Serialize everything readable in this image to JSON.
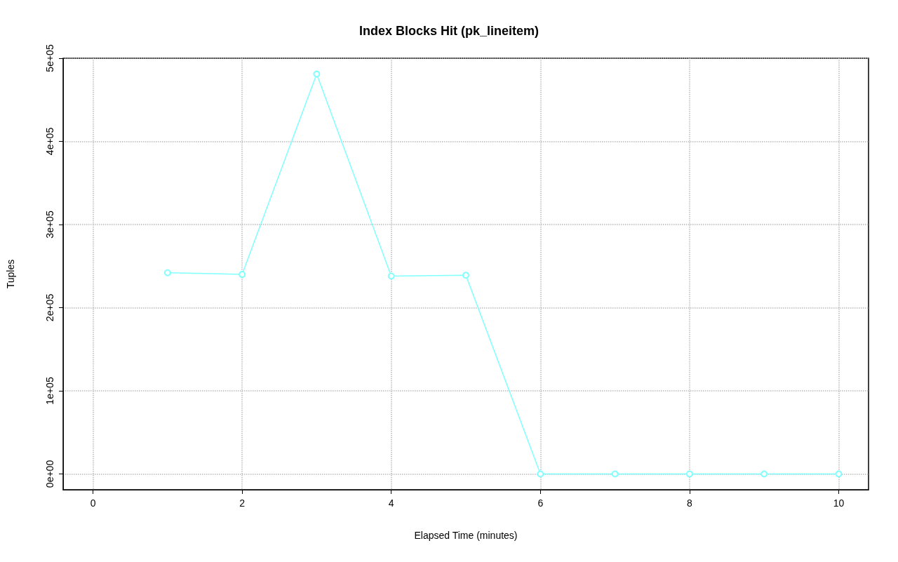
{
  "chart_data": {
    "type": "line",
    "title": "Index Blocks Hit (pk_lineitem)",
    "xlabel": "Elapsed Time (minutes)",
    "ylabel": "Tuples",
    "x": [
      1,
      2,
      3,
      4,
      5,
      6,
      7,
      8,
      9,
      10
    ],
    "series": [
      {
        "color": "#80ffff",
        "values": [
          242000,
          240000,
          481000,
          238000,
          239000,
          0,
          0,
          0,
          0,
          0
        ]
      }
    ],
    "xlim": [
      -0.4,
      10.4
    ],
    "xticks": [
      0,
      2,
      4,
      6,
      8,
      10
    ],
    "ylim": [
      -19000,
      500000
    ],
    "yticks": [
      {
        "value": 0,
        "label": "0e+00"
      },
      {
        "value": 100000,
        "label": "1e+05"
      },
      {
        "value": 200000,
        "label": "2e+05"
      },
      {
        "value": 300000,
        "label": "3e+05"
      },
      {
        "value": 400000,
        "label": "4e+05"
      },
      {
        "value": 500000,
        "label": "5e+05"
      }
    ],
    "grid": true,
    "marker": "circle",
    "line_style": "solid"
  }
}
